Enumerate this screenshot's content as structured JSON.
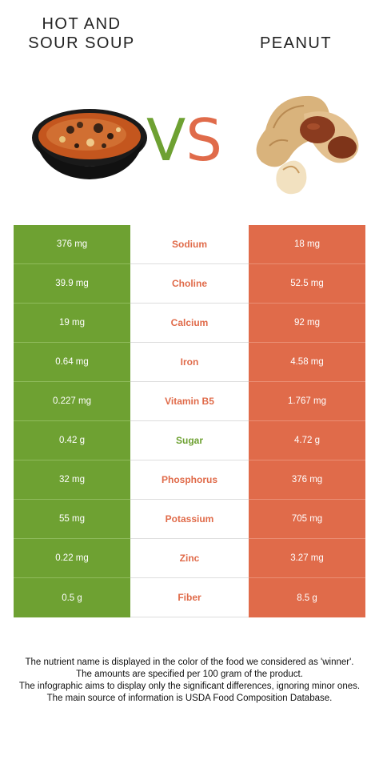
{
  "foods": {
    "left": {
      "name": "HOT AND\nSOUR SOUP",
      "color": "#6ea132",
      "image_icon": "soup-bowl-icon"
    },
    "right": {
      "name": "PEANUT",
      "color": "#e06b4a",
      "image_icon": "peanut-icon"
    }
  },
  "vs": {
    "v": "V",
    "s": "S"
  },
  "rows": [
    {
      "nutrient": "Sodium",
      "left": "376 mg",
      "right": "18 mg",
      "winner": "right"
    },
    {
      "nutrient": "Choline",
      "left": "39.9 mg",
      "right": "52.5 mg",
      "winner": "right"
    },
    {
      "nutrient": "Calcium",
      "left": "19 mg",
      "right": "92 mg",
      "winner": "right"
    },
    {
      "nutrient": "Iron",
      "left": "0.64 mg",
      "right": "4.58 mg",
      "winner": "right"
    },
    {
      "nutrient": "Vitamin B5",
      "left": "0.227 mg",
      "right": "1.767 mg",
      "winner": "right"
    },
    {
      "nutrient": "Sugar",
      "left": "0.42 g",
      "right": "4.72 g",
      "winner": "left"
    },
    {
      "nutrient": "Phosphorus",
      "left": "32 mg",
      "right": "376 mg",
      "winner": "right"
    },
    {
      "nutrient": "Potassium",
      "left": "55 mg",
      "right": "705 mg",
      "winner": "right"
    },
    {
      "nutrient": "Zinc",
      "left": "0.22 mg",
      "right": "3.27 mg",
      "winner": "right"
    },
    {
      "nutrient": "Fiber",
      "left": "0.5 g",
      "right": "8.5 g",
      "winner": "right"
    }
  ],
  "footnotes": [
    "The nutrient name is displayed in the color of the food we considered as 'winner'.",
    "The amounts are specified per 100 gram of the product.",
    "The infographic aims to display only the significant differences, ignoring minor ones.",
    "The main source of information is USDA Food Composition Database."
  ]
}
